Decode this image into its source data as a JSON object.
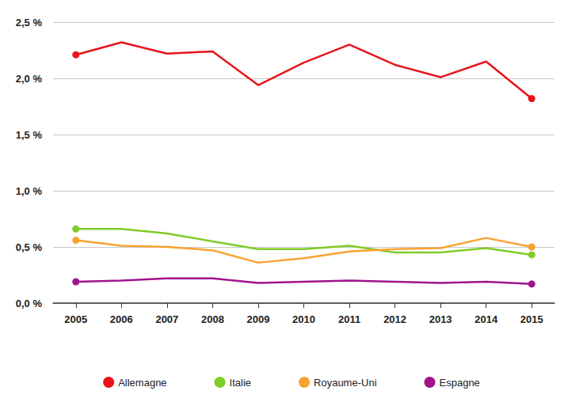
{
  "chart_data": {
    "type": "line",
    "categories": [
      "2005",
      "2006",
      "2007",
      "2008",
      "2009",
      "2010",
      "2011",
      "2012",
      "2013",
      "2014",
      "2015"
    ],
    "series": [
      {
        "name": "Allemagne",
        "color": "#e8141a",
        "values": [
          2.21,
          2.32,
          2.22,
          2.24,
          1.94,
          2.14,
          2.3,
          2.12,
          2.01,
          2.15,
          1.82
        ]
      },
      {
        "name": "Italie",
        "color": "#80cc28",
        "values": [
          0.66,
          0.66,
          0.62,
          0.55,
          0.48,
          0.48,
          0.51,
          0.45,
          0.45,
          0.49,
          0.43
        ]
      },
      {
        "name": "Royaume-Uni",
        "color": "#f8a232",
        "values": [
          0.56,
          0.51,
          0.5,
          0.47,
          0.36,
          0.4,
          0.46,
          0.48,
          0.49,
          0.58,
          0.5
        ]
      },
      {
        "name": "Espagne",
        "color": "#a0148c",
        "values": [
          0.19,
          0.2,
          0.22,
          0.22,
          0.18,
          0.19,
          0.2,
          0.19,
          0.18,
          0.19,
          0.17
        ]
      }
    ],
    "ylim": [
      0,
      2.5
    ],
    "yticks": [
      {
        "value": 0,
        "label": "0,0 %"
      },
      {
        "value": 0.5,
        "label": "0,5 %"
      },
      {
        "value": 1,
        "label": "1,0 %"
      },
      {
        "value": 1.5,
        "label": "1,5 %"
      },
      {
        "value": 2,
        "label": "2,0 %"
      },
      {
        "value": 2.5,
        "label": "2,5 %"
      }
    ],
    "grid": true,
    "legend": "bottom",
    "marker": "endpoints"
  }
}
